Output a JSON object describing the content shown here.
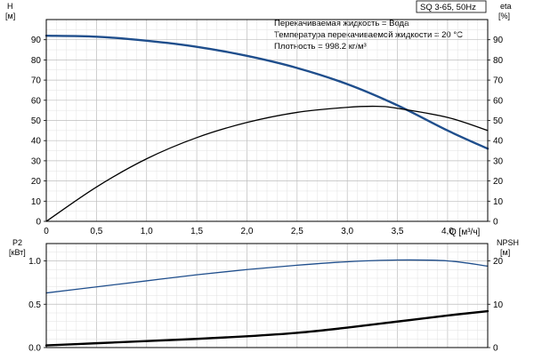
{
  "chart_data": [
    {
      "type": "line",
      "title": "SQ 3-65, 50Hz",
      "xlabel": "Q [м³/ч]",
      "xlim": [
        0,
        4.4
      ],
      "x_ticks": [
        "0",
        "0,5",
        "1,0",
        "1,5",
        "2,0",
        "2,5",
        "3,0",
        "3,5",
        "4,0"
      ],
      "y_left_label": [
        "H",
        "[м]"
      ],
      "y_right_label": [
        "eta",
        "[%]"
      ],
      "ylim_left": [
        0,
        100
      ],
      "ylim_right": [
        0,
        100
      ],
      "y_left_ticks": [
        "0",
        "10",
        "20",
        "30",
        "40",
        "50",
        "60",
        "70",
        "80",
        "90"
      ],
      "y_right_ticks": [
        "0",
        "10",
        "20",
        "30",
        "40",
        "50",
        "60",
        "70",
        "80",
        "90"
      ],
      "grid": true,
      "info_lines": [
        "Перекачиваемая жидкость = Вода",
        "Температура перекачиваемой жидкости = 20 °C",
        "Плотность = 998.2 кг/м³"
      ],
      "series": [
        {
          "axis": "left",
          "color": "#1f4e8c",
          "x": [
            0,
            0.5,
            1.0,
            1.5,
            2.0,
            2.5,
            3.0,
            3.5,
            4.0,
            4.4
          ],
          "y": [
            92,
            91.5,
            89.5,
            86.5,
            82,
            76,
            68,
            57.5,
            45,
            36
          ]
        },
        {
          "axis": "right",
          "color": "#000000",
          "x": [
            0,
            0.5,
            1.0,
            1.5,
            2.0,
            2.5,
            3.0,
            3.3,
            3.5,
            4.0,
            4.4
          ],
          "y": [
            0,
            17,
            31,
            41.5,
            49,
            54,
            56.5,
            57,
            56,
            51.5,
            45
          ]
        }
      ]
    },
    {
      "type": "line",
      "xlim": [
        0,
        4.4
      ],
      "y_left_label": [
        "P2",
        "[кВт]"
      ],
      "y_right_label": [
        "NPSH",
        "[м]"
      ],
      "ylim_left": [
        0,
        1.2
      ],
      "ylim_right": [
        0,
        24
      ],
      "y_left_ticks": [
        "0.0",
        "0.5",
        "1.0"
      ],
      "y_right_ticks": [
        "0",
        "10",
        "20"
      ],
      "grid": true,
      "series": [
        {
          "axis": "left",
          "color": "#1f4e8c",
          "x": [
            0,
            0.5,
            1.0,
            1.5,
            2.0,
            2.5,
            3.0,
            3.5,
            4.0,
            4.4
          ],
          "y": [
            0.63,
            0.7,
            0.77,
            0.84,
            0.9,
            0.95,
            0.99,
            1.01,
            1.0,
            0.94
          ]
        },
        {
          "axis": "right",
          "color": "#000000",
          "x": [
            0,
            0.5,
            1.0,
            1.5,
            2.0,
            2.5,
            3.0,
            3.5,
            4.0,
            4.4
          ],
          "y": [
            0.5,
            1.0,
            1.5,
            2.0,
            2.6,
            3.4,
            4.6,
            6.0,
            7.4,
            8.4
          ]
        }
      ]
    }
  ]
}
